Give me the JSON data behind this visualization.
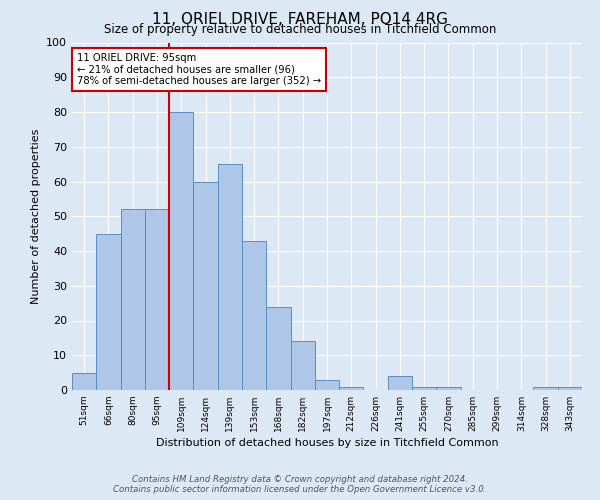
{
  "title": "11, ORIEL DRIVE, FAREHAM, PO14 4RG",
  "subtitle": "Size of property relative to detached houses in Titchfield Common",
  "xlabel": "Distribution of detached houses by size in Titchfield Common",
  "ylabel": "Number of detached properties",
  "footnote1": "Contains HM Land Registry data © Crown copyright and database right 2024.",
  "footnote2": "Contains public sector information licensed under the Open Government Licence v3.0.",
  "annotation_line1": "11 ORIEL DRIVE: 95sqm",
  "annotation_line2": "← 21% of detached houses are smaller (96)",
  "annotation_line3": "78% of semi-detached houses are larger (352) →",
  "bar_labels": [
    "51sqm",
    "66sqm",
    "80sqm",
    "95sqm",
    "109sqm",
    "124sqm",
    "139sqm",
    "153sqm",
    "168sqm",
    "182sqm",
    "197sqm",
    "212sqm",
    "226sqm",
    "241sqm",
    "255sqm",
    "270sqm",
    "285sqm",
    "299sqm",
    "314sqm",
    "328sqm",
    "343sqm"
  ],
  "bar_values": [
    5,
    45,
    52,
    52,
    80,
    60,
    65,
    43,
    24,
    14,
    3,
    1,
    0,
    4,
    1,
    1,
    0,
    0,
    0,
    1,
    1
  ],
  "bar_color": "#aec6e8",
  "bar_edge_color": "#5a8fc2",
  "vline_x": 3.5,
  "vline_color": "#cc0000",
  "annotation_box_color": "#cc0000",
  "background_color": "#dde8f5",
  "ylim": [
    0,
    100
  ],
  "yticks": [
    0,
    10,
    20,
    30,
    40,
    50,
    60,
    70,
    80,
    90,
    100
  ]
}
